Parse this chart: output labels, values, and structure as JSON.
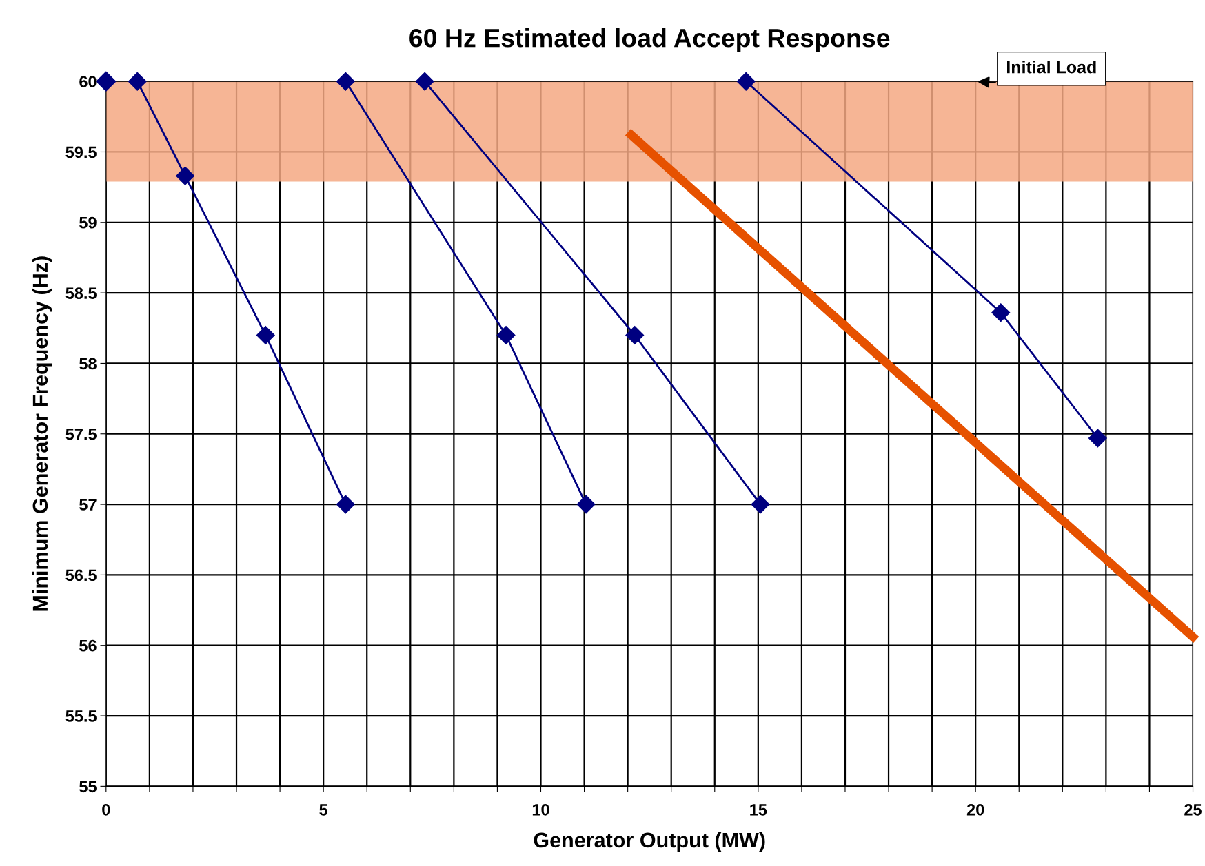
{
  "chart_data": {
    "type": "line",
    "title": "60 Hz Estimated load Accept Response",
    "xlabel": "Generator Output (MW)",
    "ylabel": "Minimum Generator Frequency (Hz)",
    "xlim": [
      0,
      25
    ],
    "ylim": [
      55,
      60
    ],
    "xticks": [
      0,
      {
        "value": 1,
        "label": null
      },
      {
        "value": 2,
        "label": null
      },
      {
        "value": 3,
        "label": null
      },
      {
        "value": 4,
        "label": null
      },
      5,
      {
        "value": 6,
        "label": null
      },
      {
        "value": 7,
        "label": null
      },
      {
        "value": 8,
        "label": null
      },
      {
        "value": 9,
        "label": null
      },
      10,
      {
        "value": 11,
        "label": null
      },
      {
        "value": 12,
        "label": null
      },
      {
        "value": 13,
        "label": null
      },
      {
        "value": 14,
        "label": null
      },
      15,
      {
        "value": 16,
        "label": null
      },
      {
        "value": 17,
        "label": null
      },
      {
        "value": 18,
        "label": null
      },
      {
        "value": 19,
        "label": null
      },
      20,
      {
        "value": 21,
        "label": null
      },
      {
        "value": 22,
        "label": null
      },
      {
        "value": 23,
        "label": null
      },
      {
        "value": 24,
        "label": null
      },
      25
    ],
    "yticks": [
      55,
      55.5,
      56,
      56.5,
      57,
      57.5,
      58,
      58.5,
      59,
      59.5,
      60
    ],
    "grid": true,
    "marker": "diamond",
    "line_style": "solid",
    "legend": false,
    "series": [
      {
        "type": "scatter",
        "color": "#000080",
        "x": [
          0
        ],
        "values": [
          60
        ]
      },
      {
        "color": "#000080",
        "x": [
          0.72,
          1.82,
          3.67,
          5.51
        ],
        "values": [
          60,
          59.33,
          58.2,
          57.0
        ]
      },
      {
        "color": "#000080",
        "x": [
          5.51,
          9.2,
          11.04
        ],
        "values": [
          60,
          58.2,
          57.0
        ]
      },
      {
        "color": "#000080",
        "x": [
          7.33,
          12.16,
          15.05
        ],
        "values": [
          60,
          58.2,
          57.0
        ]
      },
      {
        "color": "#000080",
        "x": [
          14.72,
          20.58,
          22.81
        ],
        "values": [
          60,
          58.36,
          57.47
        ]
      },
      {
        "color": "#e65100",
        "marker": "none",
        "x": [
          12.08,
          25
        ],
        "values": [
          59.62,
          56.06
        ]
      }
    ],
    "bands": [
      {
        "axis": "y",
        "from": 59.29,
        "to": 60,
        "color": "#f4a882"
      }
    ],
    "annotations": [
      {
        "text": "Initial Load",
        "x": 20,
        "y": 60
      }
    ]
  }
}
